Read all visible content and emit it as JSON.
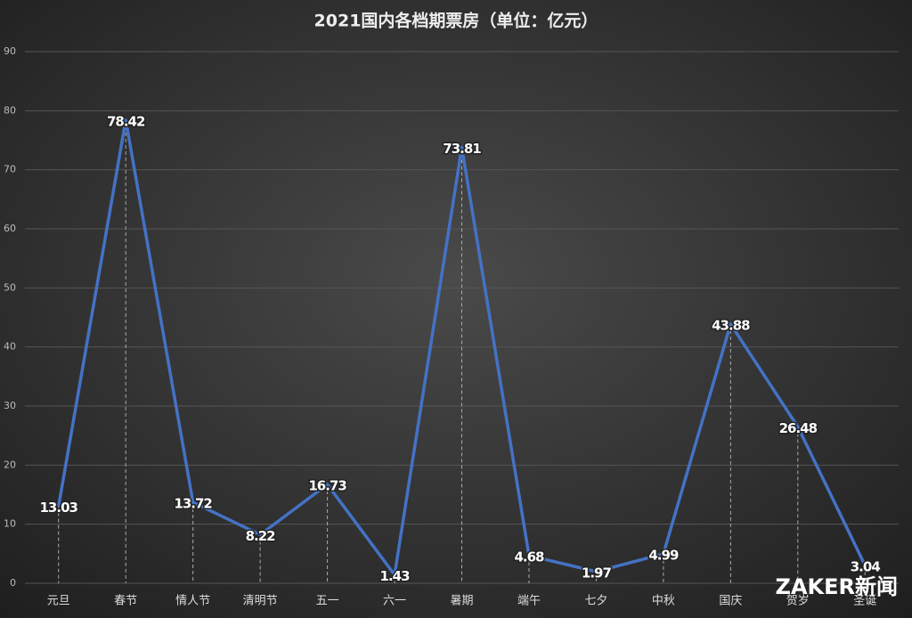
{
  "chart_data": {
    "type": "line",
    "title": "2021国内各档期票房（单位：亿元）",
    "categories": [
      "元旦",
      "春节",
      "情人节",
      "清明节",
      "五一",
      "六一",
      "暑期",
      "端午",
      "七夕",
      "中秋",
      "国庆",
      "贺岁",
      "圣诞"
    ],
    "series": [
      {
        "name": "票房",
        "color": "#4472c4",
        "values": [
          13.03,
          78.42,
          13.72,
          8.22,
          16.73,
          1.43,
          73.81,
          4.68,
          1.97,
          4.99,
          43.88,
          26.48,
          3.04
        ]
      }
    ],
    "ylim": [
      0,
      90
    ],
    "yticks": [
      0,
      10,
      20,
      30,
      40,
      50,
      60,
      70,
      80,
      90
    ],
    "grid": true,
    "watermark": "ZAKER新闻"
  }
}
